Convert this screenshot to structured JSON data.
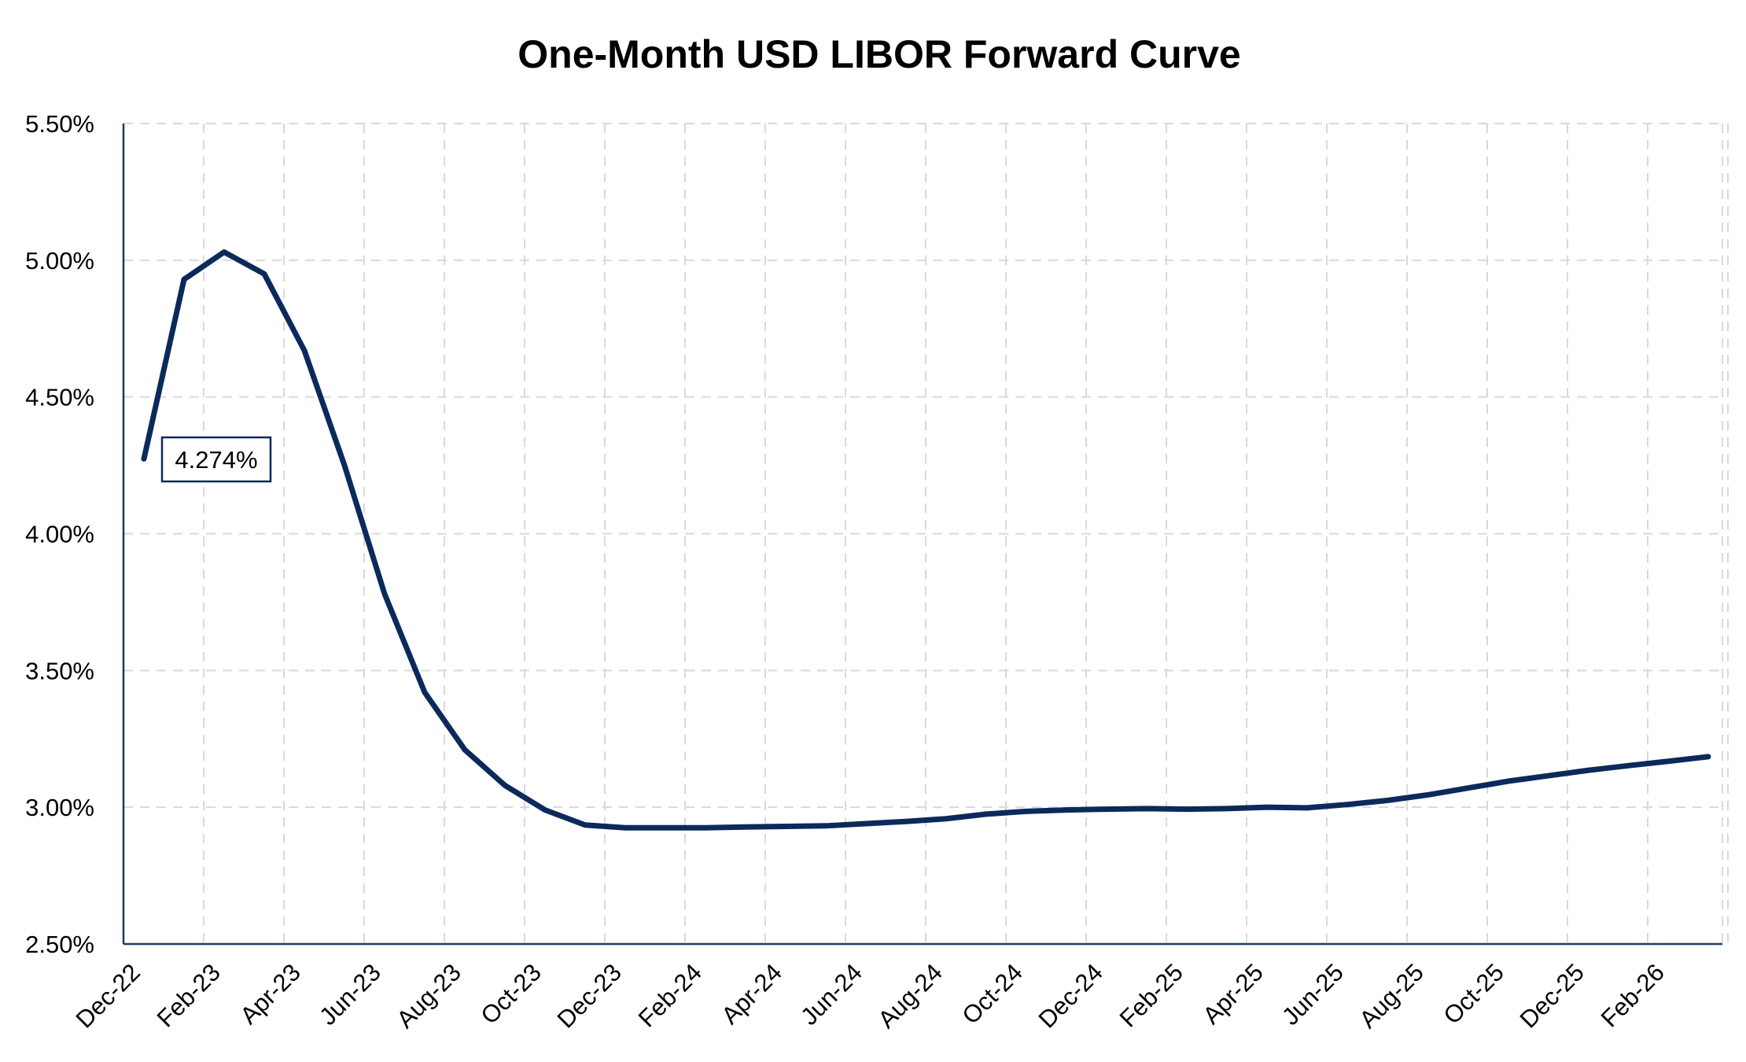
{
  "chart_data": {
    "type": "line",
    "title": "One-Month USD LIBOR Forward Curve",
    "xlabel": "",
    "ylabel": "",
    "ylim": [
      2.5,
      5.5
    ],
    "yticks": [
      "2.50%",
      "3.00%",
      "3.50%",
      "4.00%",
      "4.50%",
      "5.00%",
      "5.50%"
    ],
    "ytick_values": [
      2.5,
      3.0,
      3.5,
      4.0,
      4.5,
      5.0,
      5.5
    ],
    "xticks": [
      "Dec-22",
      "Feb-23",
      "Apr-23",
      "Jun-23",
      "Aug-23",
      "Oct-23",
      "Dec-23",
      "Feb-24",
      "Apr-24",
      "Jun-24",
      "Aug-24",
      "Oct-24",
      "Dec-24",
      "Feb-25",
      "Apr-25",
      "Jun-25",
      "Aug-25",
      "Oct-25",
      "Dec-25",
      "Feb-26"
    ],
    "grid": true,
    "annotation": {
      "label": "4.274%",
      "value": 4.274
    },
    "line_color": "#0b2a5b",
    "series": [
      {
        "x": [
          "Dec-22",
          "Jan-23",
          "Feb-23",
          "Mar-23",
          "Apr-23",
          "May-23",
          "Jun-23",
          "Jul-23",
          "Aug-23",
          "Sep-23",
          "Oct-23",
          "Nov-23",
          "Dec-23",
          "Jan-24",
          "Feb-24",
          "Mar-24",
          "Apr-24",
          "May-24",
          "Jun-24",
          "Jul-24",
          "Aug-24",
          "Sep-24",
          "Oct-24",
          "Nov-24",
          "Dec-24",
          "Jan-25",
          "Feb-25",
          "Mar-25",
          "Apr-25",
          "May-25",
          "Jun-25",
          "Jul-25",
          "Aug-25",
          "Sep-25",
          "Oct-25",
          "Nov-25",
          "Dec-25",
          "Jan-26",
          "Feb-26",
          "Mar-26"
        ],
        "values": [
          4.274,
          4.93,
          5.03,
          4.95,
          4.67,
          4.25,
          3.78,
          3.42,
          3.21,
          3.08,
          2.99,
          2.935,
          2.925,
          2.925,
          2.925,
          2.928,
          2.93,
          2.932,
          2.94,
          2.948,
          2.958,
          2.975,
          2.985,
          2.99,
          2.993,
          2.995,
          2.993,
          2.995,
          3.0,
          2.998,
          3.01,
          3.025,
          3.045,
          3.07,
          3.095,
          3.115,
          3.135,
          3.152,
          3.168,
          3.185
        ]
      }
    ]
  }
}
